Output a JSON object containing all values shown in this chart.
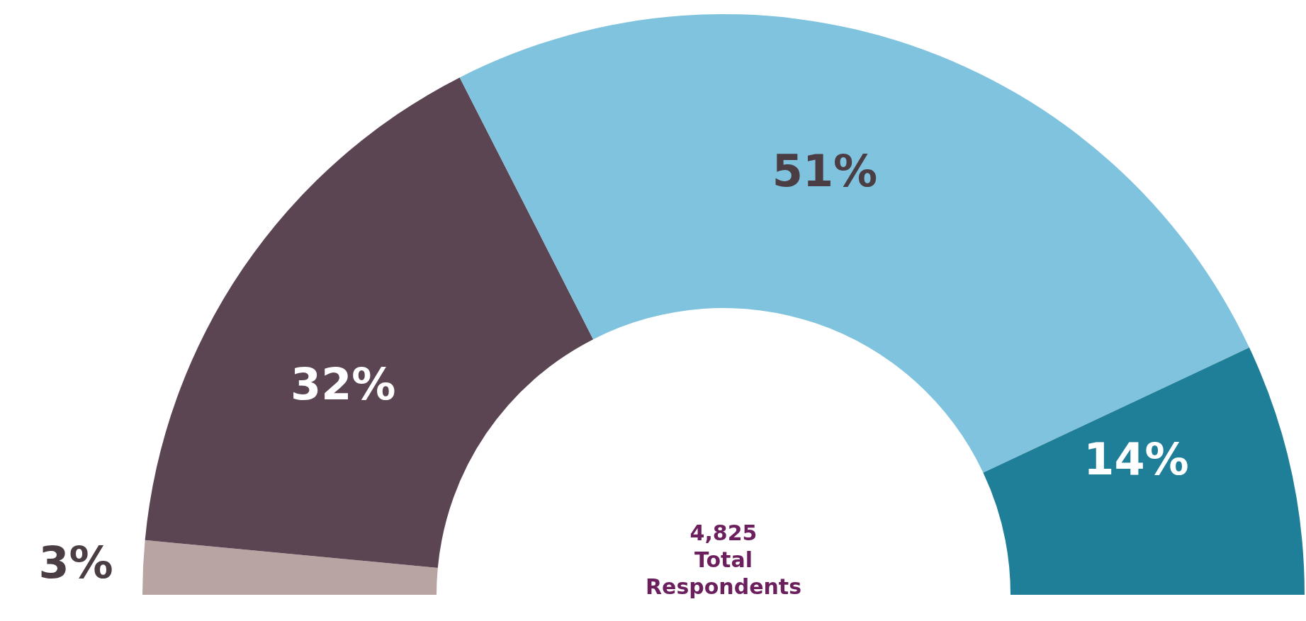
{
  "chart_data": {
    "type": "donut",
    "categories": [
      null,
      null,
      null,
      null
    ],
    "values": [
      3,
      32,
      51,
      14
    ],
    "colors": [
      "#b9a4a4",
      "#5b4553",
      "#80c3de",
      "#1f7f98"
    ],
    "value_labels": [
      "3%",
      "32%",
      "51%",
      "14%"
    ],
    "annotations": [
      "4,825 Total Respondents"
    ]
  }
}
